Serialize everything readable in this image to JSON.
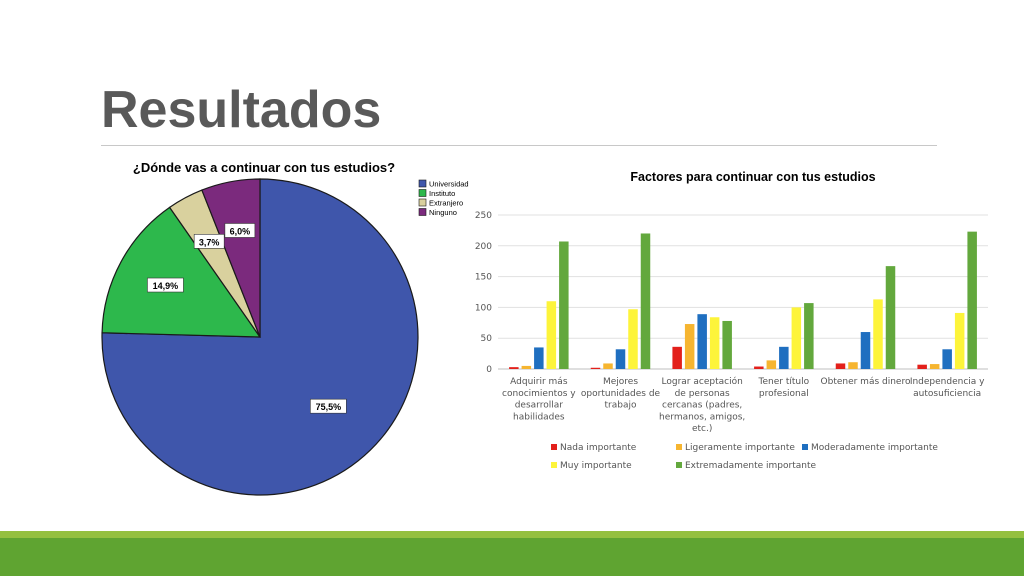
{
  "slide": {
    "title": "Resultados"
  },
  "colors": {
    "footer_light": "#94c03f",
    "footer_dark": "#5fa431",
    "title": "#595959"
  },
  "chart_data": [
    {
      "type": "pie",
      "title": "¿Dónde vas a continuar con tus estudios?",
      "slices": [
        {
          "label": "Universidad",
          "value": 75.5,
          "display": "75,5%",
          "color": "#3f56ab"
        },
        {
          "label": "Instituto",
          "value": 14.9,
          "display": "14,9%",
          "color": "#2db84c"
        },
        {
          "label": "Extranjero",
          "value": 3.7,
          "display": "3,7%",
          "color": "#d9d19e"
        },
        {
          "label": "Ninguno",
          "value": 6.0,
          "display": "6,0%",
          "color": "#7b2a7d"
        }
      ],
      "legend": "top-right"
    },
    {
      "type": "bar",
      "title": "Factores para continuar con tus estudios",
      "categories": [
        [
          "Adquirir más",
          "conocimientos y",
          "desarrollar",
          "habilidades"
        ],
        [
          "Mejores",
          "oportunidades de",
          "trabajo"
        ],
        [
          "Lograr aceptación",
          "de personas",
          "cercanas (padres,",
          "hermanos, amigos,",
          "etc.)"
        ],
        [
          "Tener título",
          "profesional"
        ],
        [
          "Obtener más dinero"
        ],
        [
          "Independencia y",
          "autosuficiencia"
        ]
      ],
      "series": [
        {
          "name": "Nada importante",
          "color": "#e3201b",
          "values": [
            3,
            2,
            36,
            4,
            9,
            7
          ]
        },
        {
          "name": "Ligeramente importante",
          "color": "#f6b530",
          "values": [
            5,
            9,
            73,
            14,
            11,
            8
          ]
        },
        {
          "name": "Moderadamente importante",
          "color": "#1f6fc0",
          "values": [
            35,
            32,
            89,
            36,
            60,
            32
          ]
        },
        {
          "name": "Muy importante",
          "color": "#fdf43a",
          "values": [
            110,
            97,
            84,
            100,
            113,
            91
          ]
        },
        {
          "name": "Extremadamente importante",
          "color": "#63a83d",
          "values": [
            207,
            220,
            78,
            107,
            167,
            223
          ]
        }
      ],
      "ylim": [
        0,
        250
      ],
      "yticks": [
        0,
        50,
        100,
        150,
        200,
        250
      ],
      "grid": true,
      "legend": "bottom"
    }
  ]
}
